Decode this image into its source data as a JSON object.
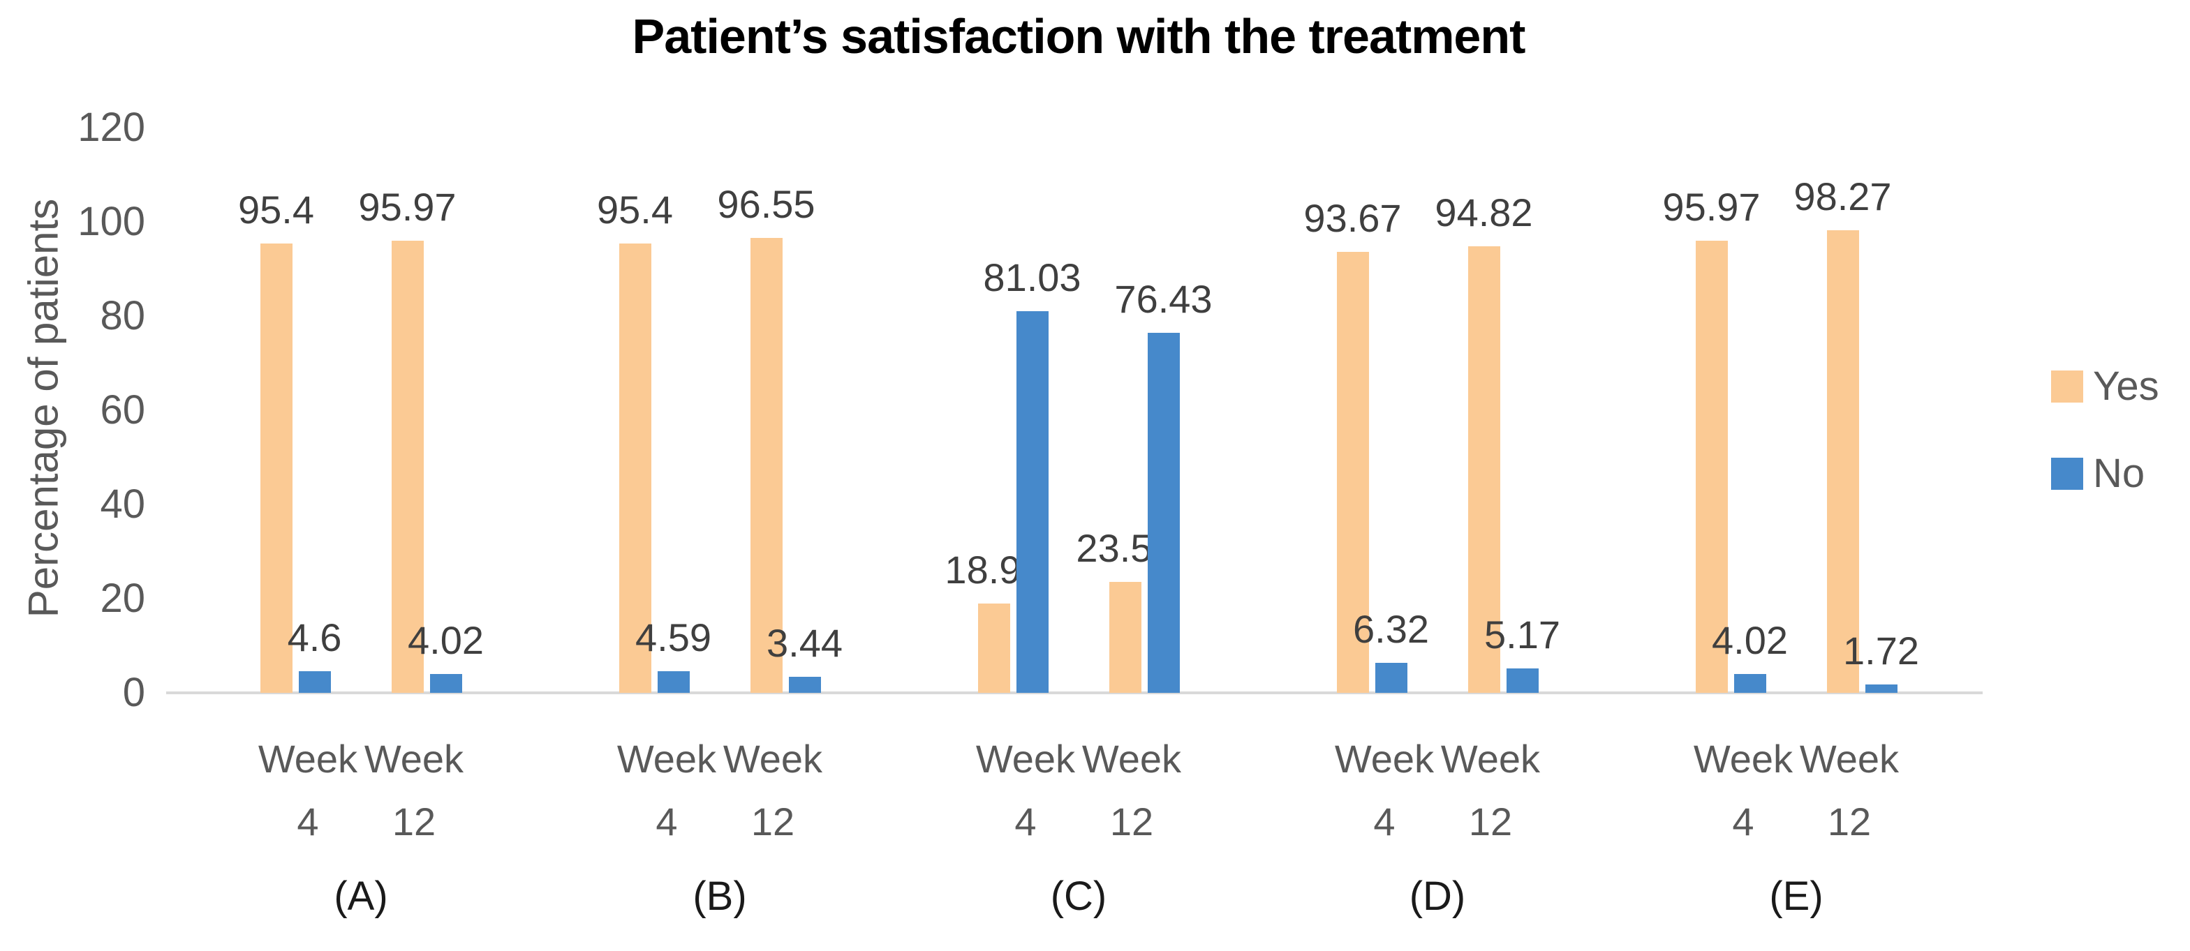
{
  "title": "Patient’s satisfaction with the treatment",
  "y_axis_title": "Percentage of patients",
  "colors": {
    "yes_bar": "#FBCA94",
    "no_bar": "#4689CB",
    "axis_line": "#D9D9D9",
    "tick_text": "#595959",
    "data_label_text": "#3F3F3F",
    "title_text": "#000000",
    "group_label_text": "#1A1A1A"
  },
  "chart_data": {
    "type": "bar",
    "title": "Patient’s satisfaction with the treatment",
    "xlabel": "",
    "ylabel": "Percentage of patients",
    "ylim": [
      0,
      120
    ],
    "yticks": [
      0,
      20,
      40,
      60,
      80,
      100,
      120
    ],
    "grid": false,
    "legend_position": "right",
    "categories": [
      "Week 4",
      "Week 12"
    ],
    "series": [
      {
        "name": "Yes",
        "color": "#FBCA94"
      },
      {
        "name": "No",
        "color": "#4689CB"
      }
    ],
    "groups": [
      {
        "label": "(A)",
        "yes": [
          95.4,
          95.97
        ],
        "no": [
          4.6,
          4.02
        ]
      },
      {
        "label": "(B)",
        "yes": [
          95.4,
          96.55
        ],
        "no": [
          4.59,
          3.44
        ]
      },
      {
        "label": "(C)",
        "yes": [
          18.96,
          23.56
        ],
        "no": [
          81.03,
          76.43
        ]
      },
      {
        "label": "(D)",
        "yes": [
          93.67,
          94.82
        ],
        "no": [
          6.32,
          5.17
        ]
      },
      {
        "label": "(E)",
        "yes": [
          95.97,
          98.27
        ],
        "no": [
          4.02,
          1.72
        ]
      }
    ]
  }
}
